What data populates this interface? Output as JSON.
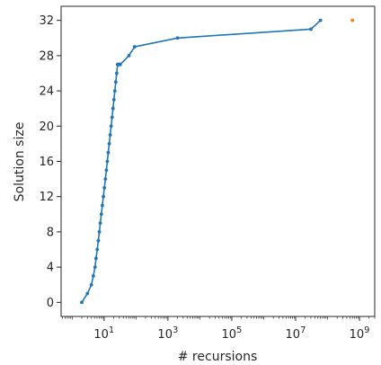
{
  "chart_data": {
    "type": "line",
    "xlabel": "# recursions",
    "ylabel": "Solution size",
    "xscale": "log",
    "xlim": [
      0.45,
      3000000000
    ],
    "ylim": [
      -1.6,
      33.6
    ],
    "x_ticks": [
      {
        "value": 10,
        "base": "10",
        "exp": "1"
      },
      {
        "value": 1000,
        "base": "10",
        "exp": "3"
      },
      {
        "value": 100000,
        "base": "10",
        "exp": "5"
      },
      {
        "value": 10000000,
        "base": "10",
        "exp": "7"
      },
      {
        "value": 1000000000,
        "base": "10",
        "exp": "9"
      }
    ],
    "y_ticks": [
      0,
      4,
      8,
      12,
      16,
      20,
      24,
      28,
      32
    ],
    "grid": false,
    "series": [
      {
        "color": "#1f77b4",
        "x": [
          2,
          3,
          4,
          4.6,
          5.2,
          5.6,
          6.1,
          6.6,
          7.1,
          7.6,
          8.2,
          8.8,
          9.5,
          10.2,
          11,
          11.8,
          12.6,
          13.5,
          14.5,
          15.5,
          16.6,
          17.8,
          19,
          20.3,
          21.7,
          23.2,
          24.8,
          26.5,
          28.3,
          30,
          31,
          31.5,
          32,
          60,
          90,
          2000,
          30000000,
          60000000
        ],
        "y": [
          0,
          1,
          2,
          3,
          4,
          5,
          6,
          7,
          8,
          9,
          10,
          11,
          12,
          13,
          14,
          15,
          16,
          17,
          18,
          19,
          20,
          21,
          22,
          23,
          24,
          25,
          26,
          27,
          27,
          27,
          27,
          27,
          27,
          28,
          29,
          30,
          31,
          32
        ]
      },
      {
        "color": "#ff7f0e",
        "x": [
          600000000
        ],
        "y": [
          32
        ]
      }
    ]
  }
}
